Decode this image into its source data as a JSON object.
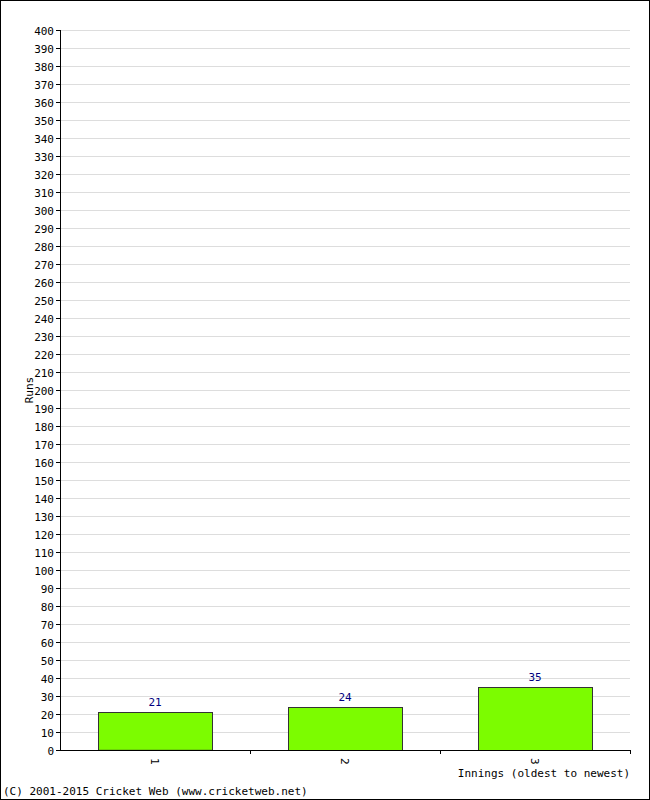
{
  "chart_data": {
    "type": "bar",
    "categories": [
      "1",
      "2",
      "3"
    ],
    "values": [
      21,
      24,
      35
    ],
    "color": "#7cfc00",
    "x_label": "Innings (oldest to newest)",
    "y_label": "Runs",
    "annotations": [
      "(C) 2001-2015 Cricket Web (www.cricketweb.net)"
    ],
    "ylim": [
      0,
      400
    ],
    "yticks": [
      0,
      10,
      20,
      30,
      40,
      50,
      60,
      70,
      80,
      90,
      100,
      110,
      120,
      130,
      140,
      150,
      160,
      170,
      180,
      190,
      200,
      210,
      220,
      230,
      240,
      250,
      260,
      270,
      280,
      290,
      300,
      310,
      320,
      330,
      340,
      350,
      360,
      370,
      380,
      390,
      400
    ],
    "grid": true,
    "data_labels": true
  }
}
